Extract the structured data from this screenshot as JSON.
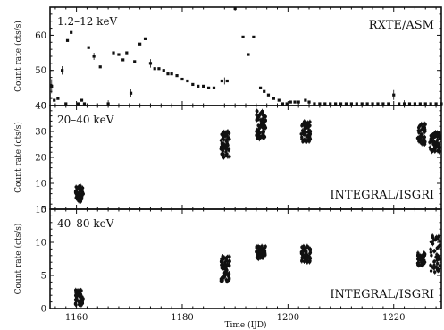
{
  "chart_data": [
    {
      "type": "scatter",
      "title": "",
      "band_label": "1.2–12 keV",
      "instrument_label": "RXTE/ASM",
      "xlabel": "",
      "ylabel": "Count rate (cts/s)",
      "xlim": [
        1155,
        1229
      ],
      "ylim": [
        40,
        68
      ],
      "yticks": [
        40,
        50,
        60
      ],
      "series": [
        {
          "points": [
            [
              1155.3,
              45.5
            ],
            [
              1155.8,
              41.5
            ],
            [
              1156.5,
              42.0
            ],
            [
              1157.3,
              50.0
            ],
            [
              1158.0,
              39.5
            ],
            [
              1158.3,
              58.5
            ],
            [
              1159.0,
              60.8
            ],
            [
              1160.3,
              39.3
            ],
            [
              1161.0,
              41.5
            ],
            [
              1161.5,
              36.0
            ],
            [
              1162.3,
              56.5
            ],
            [
              1163.3,
              54.0
            ],
            [
              1164.5,
              51.0
            ],
            [
              1166.0,
              40.5
            ],
            [
              1167.0,
              55.0
            ],
            [
              1168.0,
              54.5
            ],
            [
              1168.8,
              53.0
            ],
            [
              1169.5,
              55.0
            ],
            [
              1170.3,
              43.5
            ],
            [
              1171.0,
              52.5
            ],
            [
              1172.0,
              57.5
            ],
            [
              1173.0,
              59.0
            ],
            [
              1174.0,
              52.0
            ],
            [
              1174.8,
              50.5
            ],
            [
              1175.6,
              50.5
            ],
            [
              1176.5,
              50.0
            ],
            [
              1177.3,
              49.0
            ],
            [
              1178.0,
              49.0
            ],
            [
              1179.0,
              48.5
            ],
            [
              1180.0,
              47.5
            ],
            [
              1181.0,
              47.0
            ],
            [
              1182.0,
              46.0
            ],
            [
              1183.0,
              45.5
            ],
            [
              1184.0,
              45.5
            ],
            [
              1185.0,
              45.0
            ],
            [
              1186.0,
              45.0
            ],
            [
              1187.5,
              47.0
            ],
            [
              1188.5,
              47.0
            ],
            [
              1190.0,
              68.0
            ],
            [
              1191.5,
              59.5
            ],
            [
              1192.5,
              54.5
            ],
            [
              1193.5,
              59.5
            ],
            [
              1194.8,
              45.0
            ],
            [
              1195.5,
              44.0
            ],
            [
              1196.3,
              43.0
            ],
            [
              1197.3,
              42.0
            ],
            [
              1198.3,
              41.5
            ],
            [
              1199.0,
              40.0
            ],
            [
              1199.8,
              40.5
            ],
            [
              1200.5,
              41.0
            ],
            [
              1201.3,
              41.0
            ],
            [
              1202.0,
              41.0
            ],
            [
              1203.3,
              41.5
            ],
            [
              1204.0,
              41.0
            ],
            [
              1205.0,
              40.0
            ],
            [
              1206.0,
              39.0
            ],
            [
              1207.0,
              39.0
            ],
            [
              1208.0,
              38.5
            ],
            [
              1209.0,
              38.0
            ],
            [
              1210.0,
              38.0
            ],
            [
              1211.0,
              37.5
            ],
            [
              1212.0,
              38.0
            ],
            [
              1213.0,
              37.0
            ],
            [
              1214.0,
              36.0
            ],
            [
              1215.0,
              37.0
            ],
            [
              1216.0,
              38.0
            ],
            [
              1217.0,
              38.5
            ],
            [
              1218.0,
              38.0
            ],
            [
              1219.0,
              38.0
            ],
            [
              1220.0,
              43.0
            ],
            [
              1221.0,
              37.0
            ],
            [
              1222.0,
              40.0
            ],
            [
              1223.0,
              38.0
            ],
            [
              1224.0,
              36.0
            ],
            [
              1225.0,
              35.5
            ],
            [
              1226.0,
              40.0
            ],
            [
              1227.0,
              39.0
            ],
            [
              1228.0,
              40.0
            ],
            [
              1229.0,
              40.5
            ]
          ],
          "errorbars": [
            [
              1155.3,
              45.5,
              2.0
            ],
            [
              1157.3,
              50.0,
              1.2
            ],
            [
              1158.0,
              39.5,
              1.0
            ],
            [
              1160.3,
              39.3,
              0.8
            ],
            [
              1163.3,
              54.0,
              1.0
            ],
            [
              1166.0,
              40.5,
              1.0
            ],
            [
              1170.3,
              43.5,
              1.2
            ],
            [
              1174.0,
              52.0,
              1.2
            ],
            [
              1188.0,
              47.0,
              1.0
            ],
            [
              1190.0,
              68.0,
              1.0
            ],
            [
              1220.0,
              43.0,
              1.4
            ],
            [
              1222.0,
              40.0,
              1.5
            ],
            [
              1224.0,
              36.0,
              1.2
            ]
          ]
        }
      ]
    },
    {
      "type": "scatter",
      "title": "",
      "band_label": "20–40 keV",
      "instrument_label": "INTEGRAL/ISGRI",
      "xlabel": "",
      "ylabel": "Count rate (cts/s)",
      "xlim": [
        1155,
        1229
      ],
      "ylim": [
        0,
        40
      ],
      "yticks": [
        0,
        10,
        20,
        30,
        40
      ],
      "series": [
        {
          "clusters": [
            {
              "x_range": [
                1159.8,
                1161.3
              ],
              "y_range": [
                3,
                9
              ],
              "count": 55
            },
            {
              "x_range": [
                1187.3,
                1189.0
              ],
              "y_range": [
                20,
                30
              ],
              "count": 70
            },
            {
              "x_range": [
                1194.0,
                1195.8
              ],
              "y_range": [
                27,
                38
              ],
              "count": 75
            },
            {
              "x_range": [
                1202.5,
                1204.3
              ],
              "y_range": [
                26,
                34
              ],
              "count": 60
            },
            {
              "x_range": [
                1224.5,
                1226.0
              ],
              "y_range": [
                25,
                33
              ],
              "count": 45
            },
            {
              "x_range": [
                1226.8,
                1228.8
              ],
              "y_range": [
                22,
                30
              ],
              "count": 55
            }
          ]
        }
      ]
    },
    {
      "type": "scatter",
      "title": "",
      "band_label": "40–80 keV",
      "instrument_label": "INTEGRAL/ISGRI",
      "xlabel": "Time (IJD)",
      "ylabel": "Count rate (cts/s)",
      "xlim": [
        1155,
        1229
      ],
      "ylim": [
        0,
        15
      ],
      "yticks": [
        0,
        5,
        10,
        15
      ],
      "xticks": [
        1160,
        1180,
        1200,
        1220
      ],
      "series": [
        {
          "clusters": [
            {
              "x_range": [
                1159.8,
                1161.3
              ],
              "y_range": [
                0.5,
                3
              ],
              "count": 55
            },
            {
              "x_range": [
                1187.3,
                1189.0
              ],
              "y_range": [
                4,
                8
              ],
              "count": 70
            },
            {
              "x_range": [
                1194.0,
                1195.8
              ],
              "y_range": [
                7.5,
                9.5
              ],
              "count": 60
            },
            {
              "x_range": [
                1202.5,
                1204.3
              ],
              "y_range": [
                7,
                9.5
              ],
              "count": 55
            },
            {
              "x_range": [
                1224.5,
                1226.0
              ],
              "y_range": [
                6.5,
                8.5
              ],
              "count": 40
            },
            {
              "x_range": [
                1226.8,
                1228.8
              ],
              "y_range": [
                5.5,
                11
              ],
              "count": 50
            }
          ]
        }
      ]
    }
  ]
}
